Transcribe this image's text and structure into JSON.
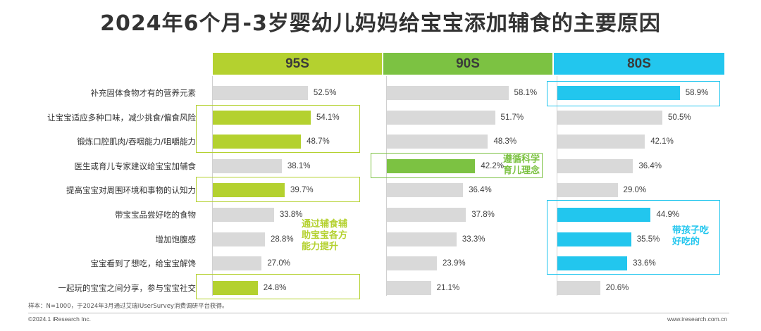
{
  "title": "2024年6个月-3岁婴幼儿妈妈给宝宝添加辅食的主要原因",
  "colors": {
    "green95": "#b4d12f",
    "green90": "#7cc242",
    "blue80": "#22c6ee",
    "gray": "#d9d9d9"
  },
  "chart_data": {
    "type": "bar",
    "orientation": "horizontal",
    "title": "2024年6个月-3岁婴幼儿妈妈给宝宝添加辅食的主要原因",
    "categories": [
      "补充固体食物才有的营养元素",
      "让宝宝适应多种口味，减少挑食/偏食风险",
      "锻炼口腔肌肉/吞咽能力/咀嚼能力",
      "医生或育儿专家建议给宝宝加辅食",
      "提高宝宝对周围环境和事物的认知力",
      "带宝宝品尝好吃的食物",
      "增加饱腹感",
      "宝宝看到了想吃，给宝宝解馋",
      "一起玩的宝宝之间分享，参与宝宝社交"
    ],
    "series": [
      {
        "name": "95S",
        "values": [
          52.5,
          54.1,
          48.7,
          38.1,
          39.7,
          33.8,
          28.8,
          27.0,
          24.8
        ],
        "labels": [
          "52.5%",
          "54.1%",
          "48.7%",
          "38.1%",
          "39.7%",
          "33.8%",
          "28.8%",
          "27.0%",
          "24.8%"
        ],
        "highlight": [
          1,
          2,
          4,
          8
        ]
      },
      {
        "name": "90S",
        "values": [
          58.1,
          51.7,
          48.3,
          42.2,
          36.4,
          37.8,
          33.3,
          23.9,
          21.1
        ],
        "labels": [
          "58.1%",
          "51.7%",
          "48.3%",
          "42.2%",
          "36.4%",
          "37.8%",
          "33.3%",
          "23.9%",
          "21.1%"
        ],
        "highlight": [
          3
        ]
      },
      {
        "name": "80S",
        "values": [
          58.9,
          50.5,
          42.1,
          36.4,
          29.0,
          44.9,
          35.5,
          33.6,
          20.6
        ],
        "labels": [
          "58.9%",
          "50.5%",
          "42.1%",
          "36.4%",
          "29.0%",
          "44.9%",
          "35.5%",
          "33.6%",
          "20.6%"
        ],
        "highlight": [
          0,
          5,
          6,
          7
        ]
      }
    ],
    "annotations": [
      {
        "series": "95S",
        "text": [
          "通过辅食辅",
          "助宝宝各方",
          "能力提升"
        ]
      },
      {
        "series": "90S",
        "text": [
          "遵循科学",
          "育儿理念"
        ]
      },
      {
        "series": "80S",
        "text": [
          "带孩子吃",
          "好吃的"
        ]
      }
    ]
  },
  "footer": {
    "note": "样本：N=1000，于2024年3月通过艾瑞iUserSurvey消费调研平台获得。",
    "copyright": "©2024.1 iResearch Inc.",
    "site": "www.iresearch.com.cn"
  }
}
